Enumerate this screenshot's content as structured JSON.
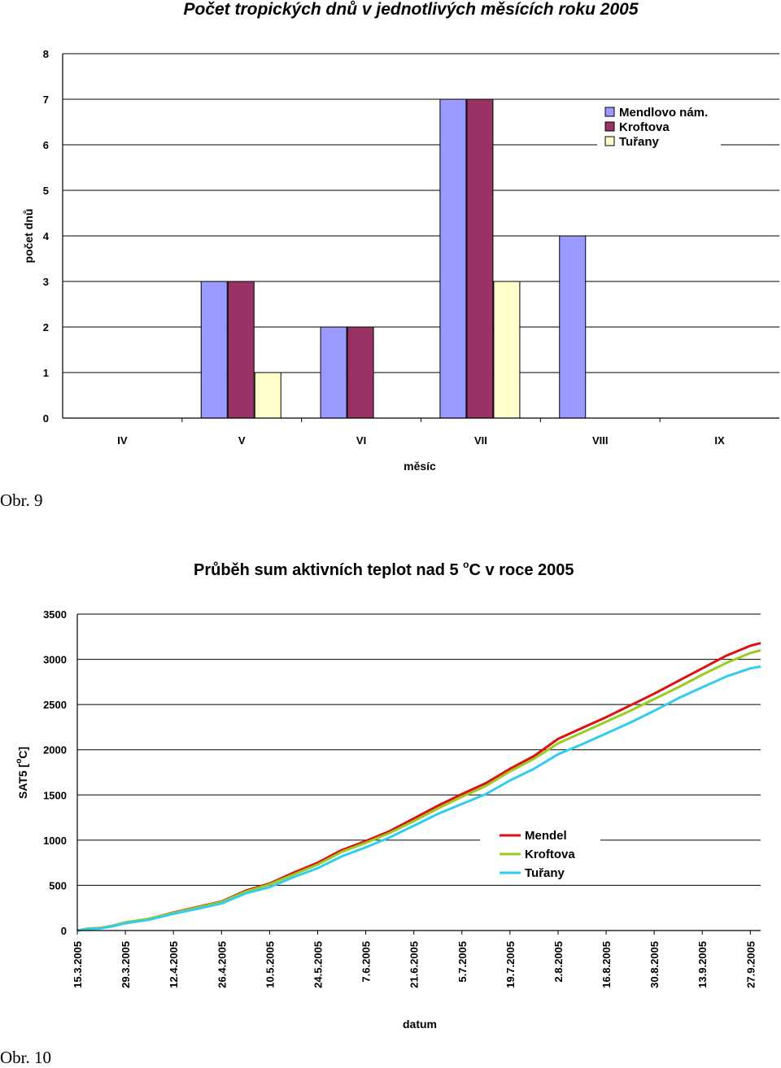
{
  "captions": {
    "fig9": "Obr. 9",
    "fig10": "Obr. 10"
  },
  "chart_data": [
    {
      "type": "bar",
      "title": "Počet tropických dnů v jednotlivých měsících roku 2005",
      "xlabel": "měsíc",
      "ylabel": "počet dnů",
      "ylim": [
        0,
        8
      ],
      "yticks": [
        0,
        1,
        2,
        3,
        4,
        5,
        6,
        7,
        8
      ],
      "grid": true,
      "legend_position": "top-right",
      "categories": [
        "IV",
        "V",
        "VI",
        "VII",
        "VIII",
        "IX"
      ],
      "series": [
        {
          "name": "Mendlovo nám.",
          "color": "#9999ff",
          "values": [
            0,
            3,
            2,
            7,
            4,
            0
          ]
        },
        {
          "name": "Kroftova",
          "color": "#993366",
          "values": [
            0,
            3,
            2,
            7,
            0,
            0
          ]
        },
        {
          "name": "Tuřany",
          "color": "#ffffcc",
          "values": [
            0,
            1,
            0,
            3,
            0,
            0
          ]
        }
      ]
    },
    {
      "type": "line",
      "title": "Průběh sum aktivních teplot nad 5 °C v roce 2005",
      "title_parts": {
        "pre": "Průběh sum aktivních teplot nad 5 ",
        "sup": "o",
        "post": "C v roce 2005"
      },
      "xlabel": "datum",
      "ylabel": "SAT5 [°C]",
      "ylabel_parts": {
        "pre": "SAT5 [",
        "sup": "o",
        "post": "C]"
      },
      "ylim": [
        0,
        3500
      ],
      "yticks": [
        0,
        500,
        1000,
        1500,
        2000,
        2500,
        3000,
        3500
      ],
      "grid": true,
      "legend_position": "right",
      "x_start": "15.3.2005",
      "x_end": "30.9.2005",
      "xticks": [
        "15.3.2005",
        "29.3.2005",
        "12.4.2005",
        "26.4.2005",
        "10.5.2005",
        "24.5.2005",
        "7.6.2005",
        "21.6.2005",
        "5.7.2005",
        "19.7.2005",
        "2.8.2005",
        "16.8.2005",
        "30.8.2005",
        "13.9.2005",
        "27.9.2005"
      ],
      "x": [
        "15.3.2005",
        "18.3.2005",
        "22.3.2005",
        "25.3.2005",
        "29.3.2005",
        "5.4.2005",
        "12.4.2005",
        "19.4.2005",
        "26.4.2005",
        "3.5.2005",
        "10.5.2005",
        "17.5.2005",
        "24.5.2005",
        "31.5.2005",
        "7.6.2005",
        "14.6.2005",
        "21.6.2005",
        "28.6.2005",
        "5.7.2005",
        "12.7.2005",
        "19.7.2005",
        "26.7.2005",
        "2.8.2005",
        "9.8.2005",
        "16.8.2005",
        "23.8.2005",
        "30.8.2005",
        "6.9.2005",
        "13.9.2005",
        "20.9.2005",
        "27.9.2005",
        "30.9.2005"
      ],
      "series": [
        {
          "name": "Mendel",
          "color": "#dd1111",
          "values": [
            0,
            20,
            30,
            50,
            90,
            130,
            200,
            260,
            320,
            440,
            520,
            640,
            750,
            890,
            990,
            1100,
            1240,
            1380,
            1510,
            1630,
            1790,
            1930,
            2120,
            2240,
            2360,
            2490,
            2620,
            2760,
            2900,
            3040,
            3150,
            3180
          ]
        },
        {
          "name": "Kroftova",
          "color": "#99cc22",
          "values": [
            0,
            20,
            30,
            50,
            90,
            130,
            195,
            255,
            315,
            430,
            510,
            620,
            730,
            870,
            970,
            1080,
            1210,
            1350,
            1480,
            1600,
            1760,
            1900,
            2070,
            2190,
            2310,
            2430,
            2560,
            2690,
            2830,
            2960,
            3070,
            3100
          ]
        },
        {
          "name": "Tuřany",
          "color": "#33ccee",
          "values": [
            0,
            15,
            25,
            45,
            80,
            120,
            185,
            240,
            300,
            410,
            480,
            590,
            690,
            820,
            920,
            1030,
            1160,
            1290,
            1400,
            1510,
            1660,
            1790,
            1950,
            2060,
            2180,
            2300,
            2430,
            2570,
            2690,
            2810,
            2900,
            2920
          ]
        }
      ]
    }
  ]
}
